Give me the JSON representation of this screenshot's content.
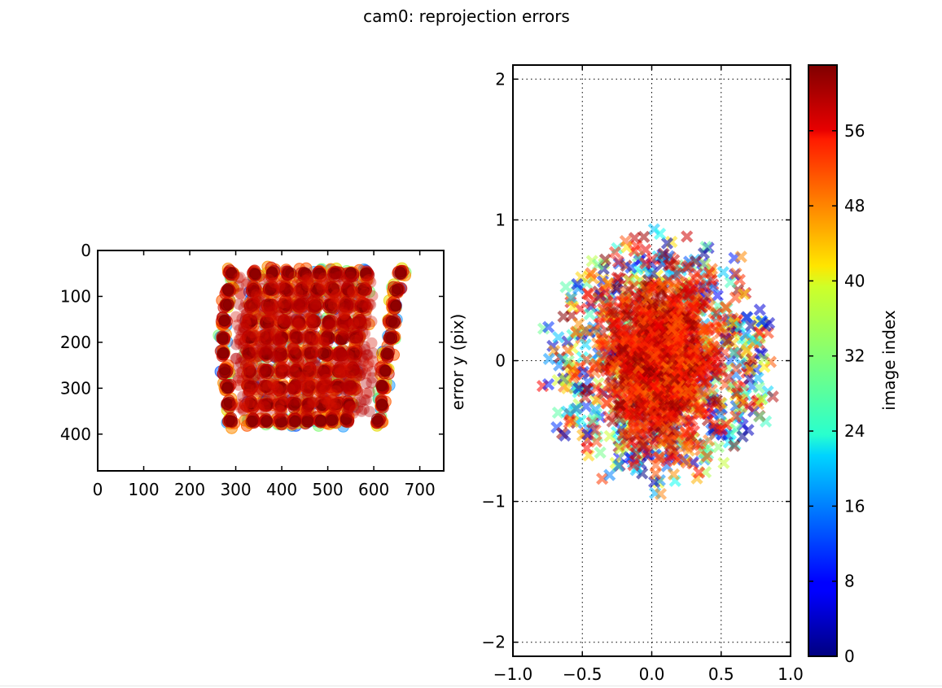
{
  "figure": {
    "title": "cam0: reprojection errors"
  },
  "chart_data": [
    {
      "type": "scatter",
      "xlim": [
        0,
        752
      ],
      "ylim": [
        480,
        0
      ],
      "xticks": [
        0,
        100,
        200,
        300,
        400,
        500,
        600,
        700
      ],
      "yticks": [
        0,
        100,
        200,
        300,
        400
      ],
      "grid": false,
      "marker": "circle",
      "colormap": "jet",
      "grid_points": {
        "cols": [
          345,
          377,
          410,
          441,
          471,
          500,
          530,
          559,
          588,
          618
        ],
        "rows": [
          50,
          85,
          120,
          155,
          190,
          225,
          262,
          297,
          335,
          370
        ],
        "left_edge_offset": [
          0,
          -6,
          -11,
          -15,
          -18,
          -17,
          -14,
          -10,
          -7,
          -3
        ],
        "right_edge_offset": [
          40,
          34,
          28,
          23,
          18,
          13,
          8,
          3,
          -2,
          -8
        ]
      },
      "series_colors": [
        "#7f0000",
        "#b50000",
        "#d41200",
        "#ff5a00",
        "#ff8c00",
        "#e6d800",
        "#7cfc70",
        "#2aa0ff",
        "#0050ff"
      ]
    },
    {
      "type": "scatter",
      "xlim": [
        -1.0,
        1.0
      ],
      "ylim": [
        -2.1,
        2.1
      ],
      "xticks": [
        -1.0,
        -0.5,
        0.0,
        0.5,
        1.0
      ],
      "xtick_labels": [
        "−1.0",
        "−0.5",
        "0.0",
        "0.5",
        "1.0"
      ],
      "yticks": [
        -2,
        -1,
        0,
        1,
        2
      ],
      "ytick_labels": [
        "−2",
        "−1",
        "0",
        "1",
        "2"
      ],
      "ylabel": "error y (pix)",
      "grid": true,
      "marker": "x",
      "colormap": "jet",
      "error_distribution": {
        "center": [
          0.05,
          0.0
        ],
        "core_std": [
          0.12,
          0.2
        ],
        "outer_extent_x": [
          -0.85,
          0.85
        ],
        "outer_extent_y": [
          -0.95,
          0.95
        ]
      }
    }
  ],
  "colorbar": {
    "label": "image index",
    "min": 0,
    "max": 63,
    "ticks": [
      0,
      8,
      16,
      24,
      32,
      40,
      48,
      56
    ],
    "colormap": "jet"
  }
}
